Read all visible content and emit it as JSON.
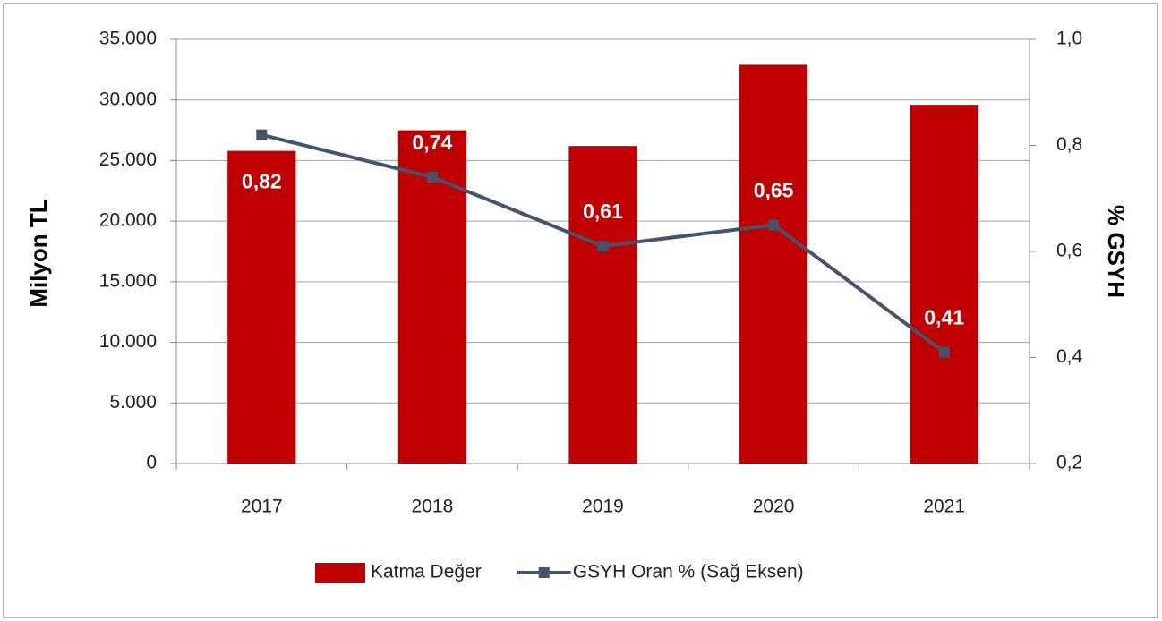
{
  "chart_data": {
    "type": "bar",
    "y_axis_label": "Milyon TL",
    "y2_axis_label": "% GSYH",
    "categories": [
      "2017",
      "2018",
      "2019",
      "2020",
      "2021"
    ],
    "series": [
      {
        "name": "Katma Değer",
        "type": "bar",
        "color": "#c00000",
        "values": [
          25800,
          27500,
          26200,
          32900,
          29600
        ]
      },
      {
        "name": "GSYH Oran % (Sağ Eksen)",
        "type": "line",
        "axis": "y2",
        "color": "#44546a",
        "values": [
          0.82,
          0.74,
          0.61,
          0.65,
          0.41
        ],
        "value_labels": [
          "0,82",
          "0,74",
          "0,61",
          "0,65",
          "0,41"
        ]
      }
    ],
    "ylim": [
      0,
      35000
    ],
    "yticks": [
      {
        "value": 0,
        "label": "0"
      },
      {
        "value": 5000,
        "label": "5.000"
      },
      {
        "value": 10000,
        "label": "10.000"
      },
      {
        "value": 15000,
        "label": "15.000"
      },
      {
        "value": 20000,
        "label": "20.000"
      },
      {
        "value": 25000,
        "label": "25.000"
      },
      {
        "value": 30000,
        "label": "30.000"
      },
      {
        "value": 35000,
        "label": "35.000"
      }
    ],
    "y2lim": [
      0.2,
      1.0
    ],
    "y2ticks": [
      {
        "value": 0.2,
        "label": "0,2"
      },
      {
        "value": 0.4,
        "label": "0,4"
      },
      {
        "value": 0.6,
        "label": "0,6"
      },
      {
        "value": 0.8,
        "label": "0,8"
      },
      {
        "value": 1.0,
        "label": "1,0"
      }
    ],
    "grid": true,
    "legend": "bottom"
  }
}
